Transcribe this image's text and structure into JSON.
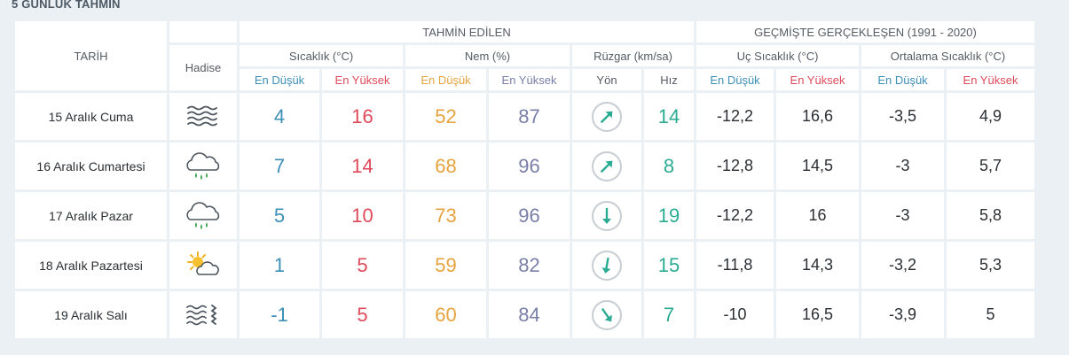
{
  "title": "5 GÜNLÜK TAHMİN",
  "headers": {
    "date": "TARİH",
    "event": "Hadise",
    "forecast_group": "TAHMİN EDİLEN",
    "past_group": "GEÇMİŞTE GERÇEKLEŞEN (1991 - 2020)",
    "temperature": "Sıcaklık (°C)",
    "humidity": "Nem (%)",
    "wind": "Rüzgar (km/sa)",
    "extreme_temp": "Uç Sıcaklık (°C)",
    "avg_temp": "Ortalama Sıcaklık (°C)",
    "low": "En Düşük",
    "high": "En Yüksek",
    "direction": "Yön",
    "speed": "Hız"
  },
  "days": [
    {
      "date": "15 Aralık Cuma",
      "icon": "fog-icon",
      "temp_low": "4",
      "temp_high": "16",
      "hum_low": "52",
      "hum_high": "87",
      "wind_dir_deg": 45,
      "wind_speed": "14",
      "ext_low": "-12,2",
      "ext_high": "16,6",
      "avg_low": "-3,5",
      "avg_high": "4,9"
    },
    {
      "date": "16 Aralık Cumartesi",
      "icon": "cloud-rain-icon",
      "temp_low": "7",
      "temp_high": "14",
      "hum_low": "68",
      "hum_high": "96",
      "wind_dir_deg": 45,
      "wind_speed": "8",
      "ext_low": "-12,8",
      "ext_high": "14,5",
      "avg_low": "-3",
      "avg_high": "5,7"
    },
    {
      "date": "17 Aralık Pazar",
      "icon": "cloud-rain-icon",
      "temp_low": "5",
      "temp_high": "10",
      "hum_low": "73",
      "hum_high": "96",
      "wind_dir_deg": 180,
      "wind_speed": "19",
      "ext_low": "-12,2",
      "ext_high": "16",
      "avg_low": "-3",
      "avg_high": "5,8"
    },
    {
      "date": "18 Aralık Pazartesi",
      "icon": "partly-sunny-icon",
      "temp_low": "1",
      "temp_high": "5",
      "hum_low": "59",
      "hum_high": "82",
      "wind_dir_deg": 190,
      "wind_speed": "15",
      "ext_low": "-11,8",
      "ext_high": "14,3",
      "avg_low": "-3,2",
      "avg_high": "5,3"
    },
    {
      "date": "19 Aralık Salı",
      "icon": "fog-wind-icon",
      "temp_low": "-1",
      "temp_high": "5",
      "hum_low": "60",
      "hum_high": "84",
      "wind_dir_deg": 145,
      "wind_speed": "7",
      "ext_low": "-10",
      "ext_high": "16,5",
      "avg_low": "-3,9",
      "avg_high": "5"
    }
  ],
  "colors": {
    "low": "#3d8fb6",
    "high": "#df4a5a",
    "humidity_low": "#e6a33e",
    "humidity_high": "#7a7fa8",
    "wind": "#2bab93"
  }
}
